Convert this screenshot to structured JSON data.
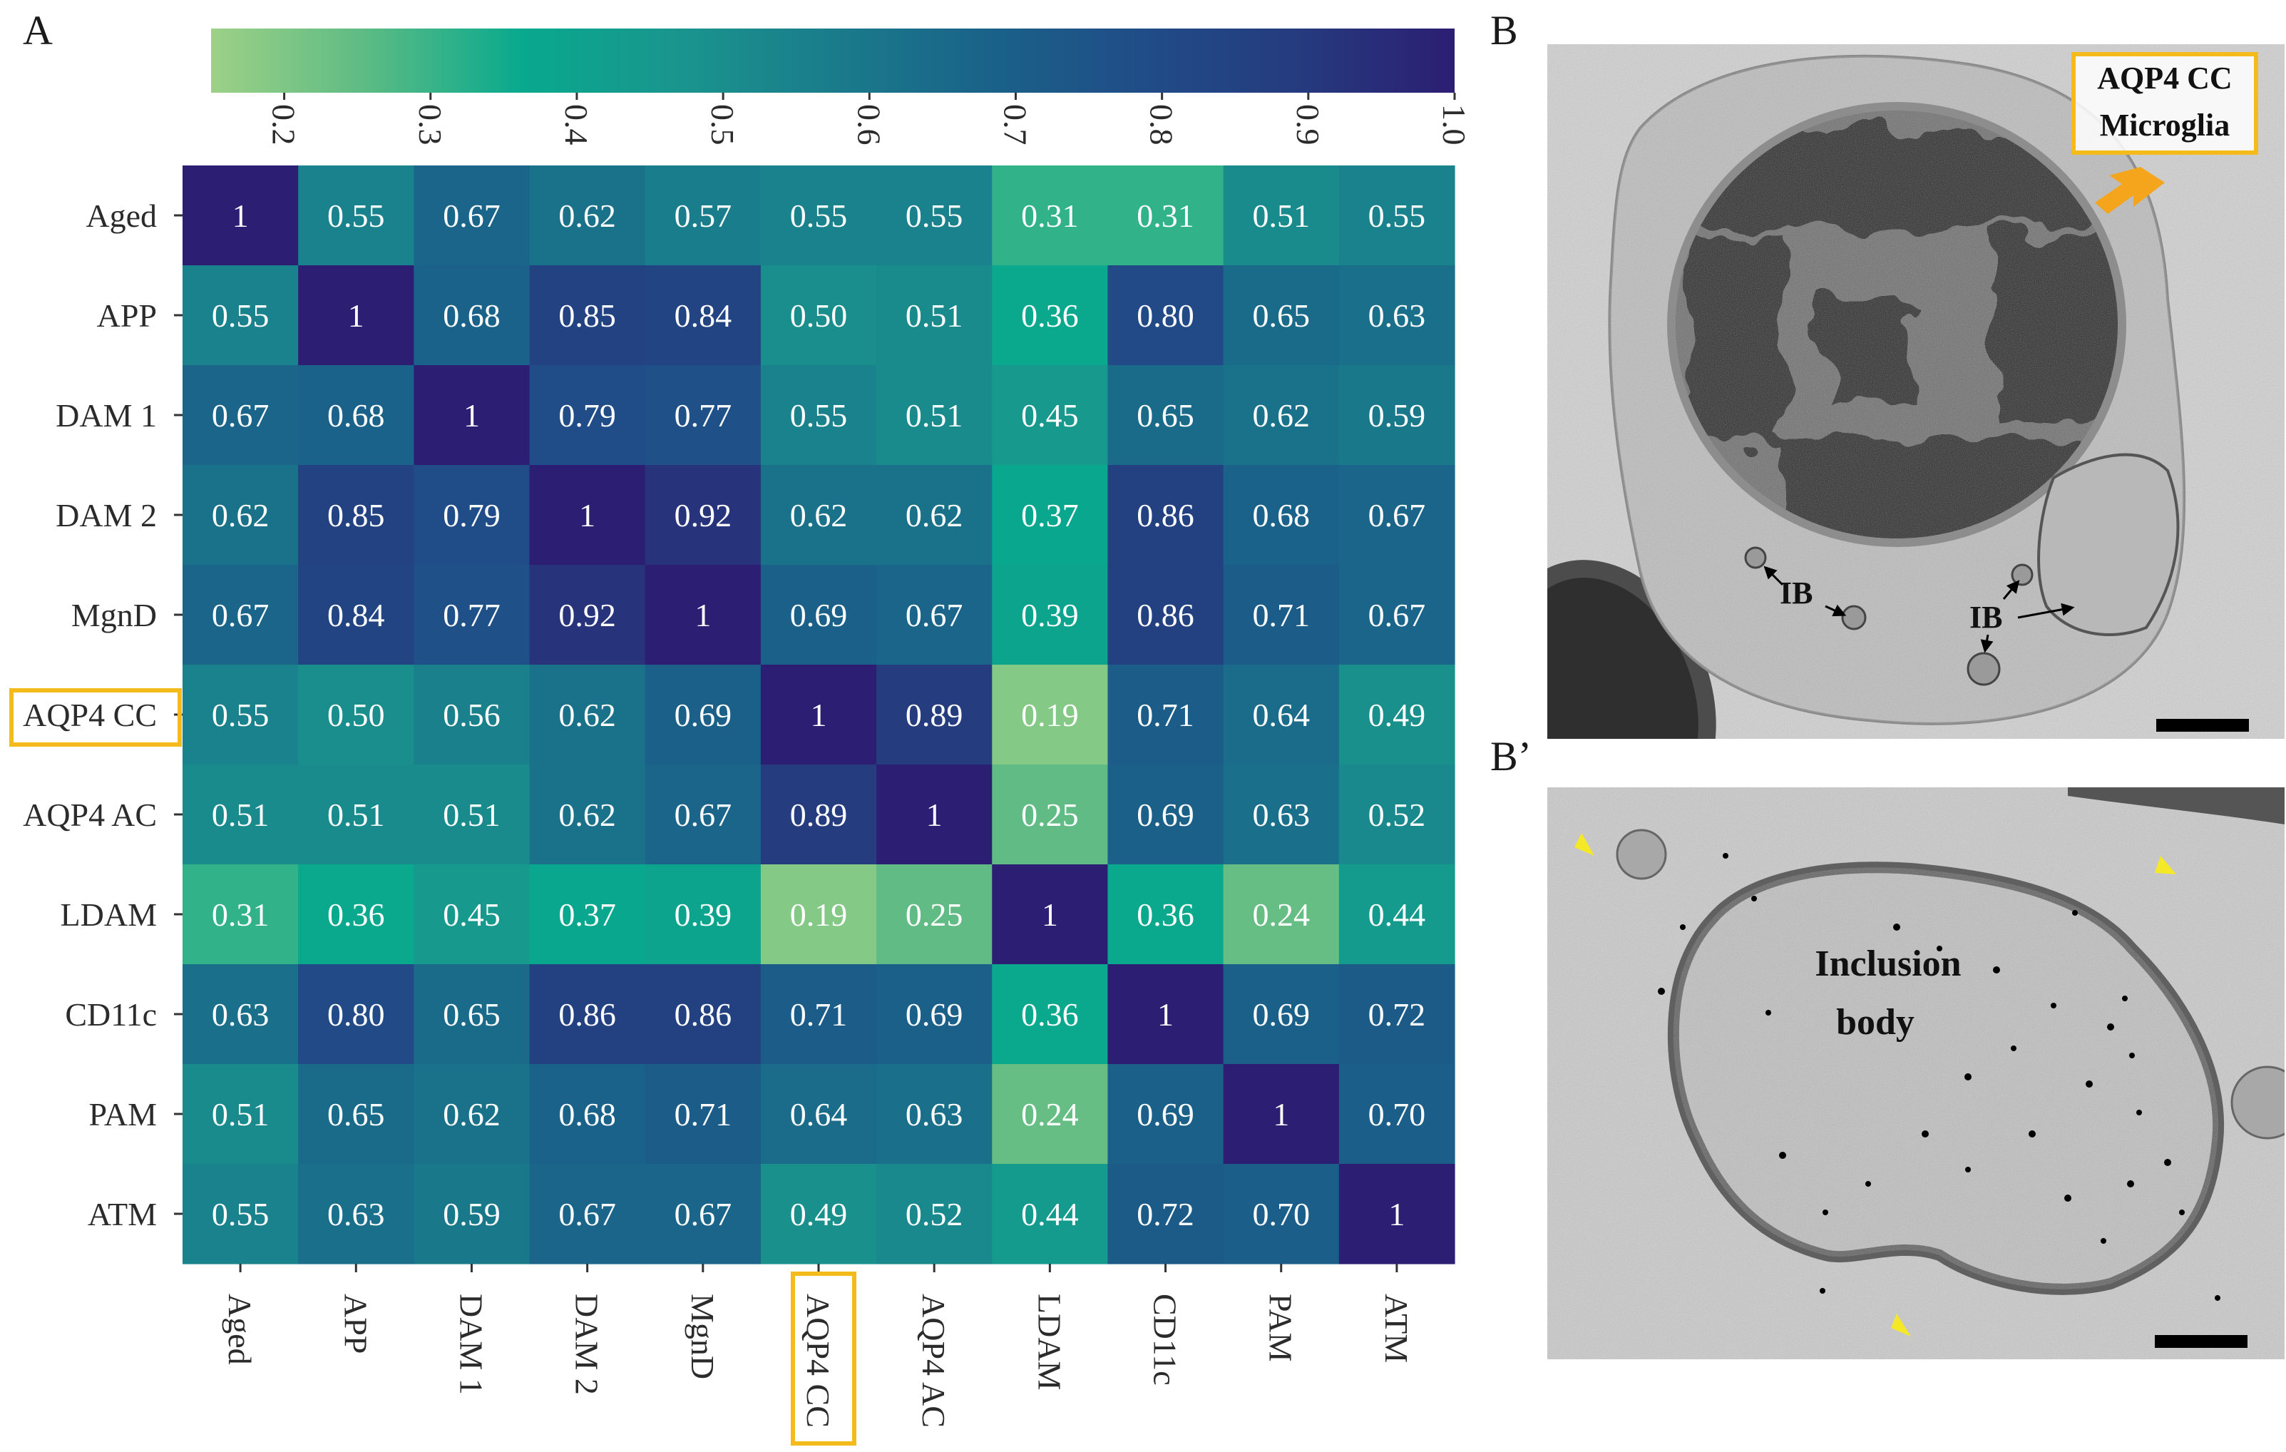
{
  "panel_labels": {
    "a": "A",
    "b": "B",
    "b_prime": "B’"
  },
  "chart_data": {
    "type": "heatmap",
    "title": "",
    "rows": [
      "Aged",
      "APP",
      "DAM 1",
      "DAM 2",
      "MgnD",
      "AQP4 CC",
      "AQP4 AC",
      "LDAM",
      "CD11c",
      "PAM",
      "ATM"
    ],
    "columns": [
      "Aged",
      "APP",
      "DAM 1",
      "DAM 2",
      "MgnD",
      "AQP4 CC",
      "AQP4 AC",
      "LDAM",
      "CD11c",
      "PAM",
      "ATM"
    ],
    "values": [
      [
        1,
        0.55,
        0.67,
        0.62,
        0.57,
        0.55,
        0.55,
        0.31,
        0.31,
        0.51,
        0.55
      ],
      [
        0.55,
        1,
        0.68,
        0.85,
        0.84,
        0.5,
        0.51,
        0.36,
        0.8,
        0.65,
        0.63
      ],
      [
        0.67,
        0.68,
        1,
        0.79,
        0.77,
        0.55,
        0.51,
        0.45,
        0.65,
        0.62,
        0.59
      ],
      [
        0.62,
        0.85,
        0.79,
        1,
        0.92,
        0.62,
        0.62,
        0.37,
        0.86,
        0.68,
        0.67
      ],
      [
        0.67,
        0.84,
        0.77,
        0.92,
        1,
        0.69,
        0.67,
        0.39,
        0.86,
        0.71,
        0.67
      ],
      [
        0.55,
        0.5,
        0.56,
        0.62,
        0.69,
        1,
        0.89,
        0.19,
        0.71,
        0.64,
        0.49
      ],
      [
        0.51,
        0.51,
        0.51,
        0.62,
        0.67,
        0.89,
        1,
        0.25,
        0.69,
        0.63,
        0.52
      ],
      [
        0.31,
        0.36,
        0.45,
        0.37,
        0.39,
        0.19,
        0.25,
        1,
        0.36,
        0.24,
        0.44
      ],
      [
        0.63,
        0.8,
        0.65,
        0.86,
        0.86,
        0.71,
        0.69,
        0.36,
        1,
        0.69,
        0.72
      ],
      [
        0.51,
        0.65,
        0.62,
        0.68,
        0.71,
        0.64,
        0.63,
        0.24,
        0.69,
        1,
        0.7
      ],
      [
        0.55,
        0.63,
        0.59,
        0.67,
        0.67,
        0.49,
        0.52,
        0.44,
        0.72,
        0.7,
        1
      ]
    ],
    "labels": [
      [
        "1",
        "0.55",
        "0.67",
        "0.62",
        "0.57",
        "0.55",
        "0.55",
        "0.31",
        "0.31",
        "0.51",
        "0.55"
      ],
      [
        "0.55",
        "1",
        "0.68",
        "0.85",
        "0.84",
        "0.50",
        "0.51",
        "0.36",
        "0.80",
        "0.65",
        "0.63"
      ],
      [
        "0.67",
        "0.68",
        "1",
        "0.79",
        "0.77",
        "0.55",
        "0.51",
        "0.45",
        "0.65",
        "0.62",
        "0.59"
      ],
      [
        "0.62",
        "0.85",
        "0.79",
        "1",
        "0.92",
        "0.62",
        "0.62",
        "0.37",
        "0.86",
        "0.68",
        "0.67"
      ],
      [
        "0.67",
        "0.84",
        "0.77",
        "0.92",
        "1",
        "0.69",
        "0.67",
        "0.39",
        "0.86",
        "0.71",
        "0.67"
      ],
      [
        "0.55",
        "0.50",
        "0.56",
        "0.62",
        "0.69",
        "1",
        "0.89",
        "0.19",
        "0.71",
        "0.64",
        "0.49"
      ],
      [
        "0.51",
        "0.51",
        "0.51",
        "0.62",
        "0.67",
        "0.89",
        "1",
        "0.25",
        "0.69",
        "0.63",
        "0.52"
      ],
      [
        "0.31",
        "0.36",
        "0.45",
        "0.37",
        "0.39",
        "0.19",
        "0.25",
        "1",
        "0.36",
        "0.24",
        "0.44"
      ],
      [
        "0.63",
        "0.80",
        "0.65",
        "0.86",
        "0.86",
        "0.71",
        "0.69",
        "0.36",
        "1",
        "0.69",
        "0.72"
      ],
      [
        "0.51",
        "0.65",
        "0.62",
        "0.68",
        "0.71",
        "0.64",
        "0.63",
        "0.24",
        "0.69",
        "1",
        "0.70"
      ],
      [
        "0.55",
        "0.63",
        "0.59",
        "0.67",
        "0.67",
        "0.49",
        "0.52",
        "0.44",
        "0.72",
        "0.70",
        "1"
      ]
    ],
    "highlighted_row": "AQP4 CC",
    "highlighted_column": "AQP4 CC",
    "colorbar": {
      "orientation": "horizontal",
      "position": "top",
      "range": [
        0.15,
        1.0
      ],
      "ticks": [
        0.2,
        0.3,
        0.4,
        0.5,
        0.6,
        0.7,
        0.8,
        0.9,
        1.0
      ],
      "tick_labels": [
        "0.2",
        "0.3",
        "0.4",
        "0.5",
        "0.6",
        "0.7",
        "0.8",
        "0.9",
        "1.0"
      ],
      "colormap": "crest",
      "colormap_stops": [
        "#9dd187",
        "#5cbb84",
        "#08a98e",
        "#1a958e",
        "#1a7c8b",
        "#1a6289",
        "#204c87",
        "#253b7e",
        "#2c1e73"
      ]
    }
  },
  "micrographs": {
    "b": {
      "callout_line1": "AQP4 CC",
      "callout_line2": "Microglia",
      "ib_label_left": "IB",
      "ib_label_right": "IB"
    },
    "b_prime": {
      "label_line1": "Inclusion",
      "label_line2": "body"
    }
  },
  "colors": {
    "highlight": "#f5bb1c",
    "arrowhead": "#f5e826",
    "em_background": "#c9c9c9",
    "nucleus": "#3b3b3b"
  }
}
